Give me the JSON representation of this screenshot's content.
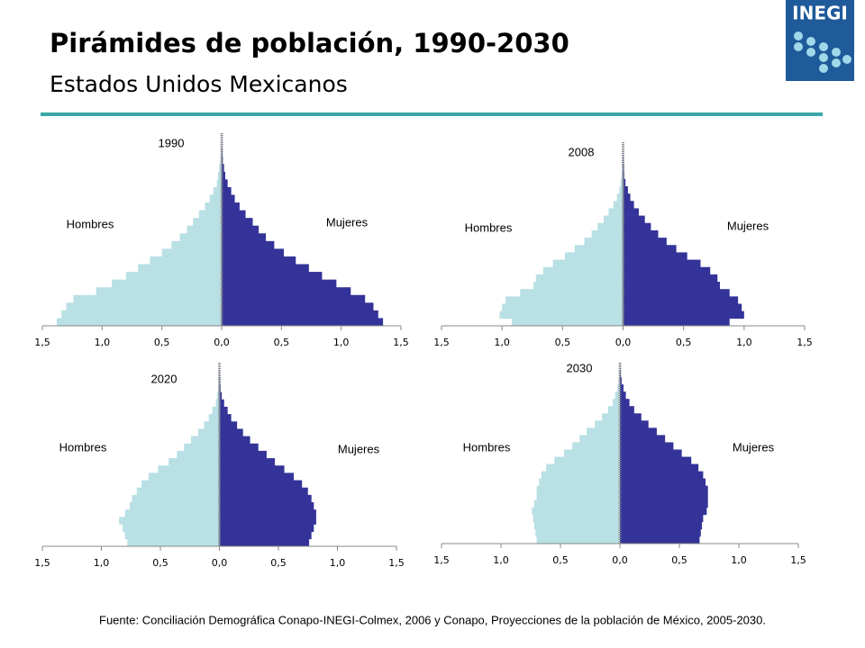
{
  "header": {
    "title": "Pirámides de población, 1990-2030",
    "subtitle": "Estados Unidos Mexicanos",
    "logo": "INEGI"
  },
  "footer": {
    "source": "Fuente: Conciliación Demográfica Conapo-INEGI-Colmex, 2006 y Conapo, Proyecciones de la población de México, 2005-2030."
  },
  "chart_data": [
    {
      "type": "pyramid",
      "title": "1990",
      "categories": [
        null,
        null,
        null,
        null,
        null,
        null,
        null,
        null,
        null,
        null,
        null,
        null,
        null,
        null,
        null,
        null,
        null,
        null,
        null,
        null,
        null,
        null,
        null,
        null,
        null
      ],
      "series": [
        {
          "name": "Hombres",
          "color": "#b9e0e4",
          "values": [
            1.38,
            1.34,
            1.3,
            1.24,
            1.05,
            0.92,
            0.8,
            0.7,
            0.6,
            0.5,
            0.42,
            0.35,
            0.29,
            0.24,
            0.19,
            0.14,
            0.1,
            0.07,
            0.04,
            0.03,
            0.02,
            0.01,
            0.005,
            0.003,
            0.002
          ]
        },
        {
          "name": "Mujeres",
          "color": "#333399",
          "values": [
            1.35,
            1.31,
            1.27,
            1.2,
            1.08,
            0.96,
            0.84,
            0.73,
            0.62,
            0.52,
            0.44,
            0.37,
            0.31,
            0.26,
            0.2,
            0.15,
            0.11,
            0.08,
            0.05,
            0.03,
            0.02,
            0.01,
            0.006,
            0.003,
            0.002
          ]
        }
      ],
      "xlim": [
        -1.5,
        1.5
      ],
      "xticks": [
        {
          "value": -1.5,
          "label": "1,5"
        },
        {
          "value": -1.0,
          "label": "1,0"
        },
        {
          "value": -0.5,
          "label": "0,5"
        },
        {
          "value": 0,
          "label": "0,0"
        },
        {
          "value": 0.5,
          "label": "0,5"
        },
        {
          "value": 1.0,
          "label": "1,0"
        },
        {
          "value": 1.5,
          "label": "1,5"
        }
      ]
    },
    {
      "type": "pyramid",
      "title": "2008",
      "categories": [
        null,
        null,
        null,
        null,
        null,
        null,
        null,
        null,
        null,
        null,
        null,
        null,
        null,
        null,
        null,
        null,
        null,
        null,
        null,
        null,
        null,
        null,
        null,
        null,
        null
      ],
      "series": [
        {
          "name": "Hombres",
          "color": "#b9e0e4",
          "values": [
            0.92,
            1.02,
            1.0,
            0.97,
            0.85,
            0.74,
            0.72,
            0.66,
            0.58,
            0.48,
            0.4,
            0.32,
            0.26,
            0.21,
            0.16,
            0.12,
            0.08,
            0.05,
            0.03,
            0.02,
            0.01,
            0.006,
            0.003,
            0.002,
            0.001
          ]
        },
        {
          "name": "Mujeres",
          "color": "#333399",
          "values": [
            0.88,
            1.0,
            0.98,
            0.95,
            0.88,
            0.8,
            0.78,
            0.72,
            0.64,
            0.53,
            0.44,
            0.36,
            0.29,
            0.23,
            0.18,
            0.13,
            0.09,
            0.06,
            0.04,
            0.02,
            0.01,
            0.007,
            0.004,
            0.002,
            0.001
          ]
        }
      ],
      "xlim": [
        -1.5,
        1.5
      ],
      "xticks": [
        {
          "value": -1.5,
          "label": "1,5"
        },
        {
          "value": -1.0,
          "label": "1,0"
        },
        {
          "value": -0.5,
          "label": "0,5"
        },
        {
          "value": 0,
          "label": "0,0"
        },
        {
          "value": 0.5,
          "label": "0,5"
        },
        {
          "value": 1.0,
          "label": "1,0"
        },
        {
          "value": 1.5,
          "label": "1,5"
        }
      ]
    },
    {
      "type": "pyramid",
      "title": "2020",
      "categories": [
        null,
        null,
        null,
        null,
        null,
        null,
        null,
        null,
        null,
        null,
        null,
        null,
        null,
        null,
        null,
        null,
        null,
        null,
        null,
        null,
        null,
        null,
        null,
        null,
        null
      ],
      "series": [
        {
          "name": "Hombres",
          "color": "#b9e0e4",
          "values": [
            0.78,
            0.8,
            0.82,
            0.85,
            0.8,
            0.76,
            0.74,
            0.7,
            0.66,
            0.6,
            0.52,
            0.43,
            0.36,
            0.3,
            0.24,
            0.18,
            0.13,
            0.09,
            0.06,
            0.03,
            0.02,
            0.01,
            0.005,
            0.003,
            0.001
          ]
        },
        {
          "name": "Mujeres",
          "color": "#333399",
          "values": [
            0.76,
            0.78,
            0.8,
            0.82,
            0.82,
            0.8,
            0.78,
            0.75,
            0.7,
            0.63,
            0.55,
            0.47,
            0.4,
            0.33,
            0.26,
            0.2,
            0.15,
            0.1,
            0.07,
            0.04,
            0.02,
            0.01,
            0.006,
            0.003,
            0.001
          ]
        }
      ],
      "xlim": [
        -1.5,
        1.5
      ],
      "xticks": [
        {
          "value": -1.5,
          "label": "1,5"
        },
        {
          "value": -1.0,
          "label": "1,0"
        },
        {
          "value": -0.5,
          "label": "0,5"
        },
        {
          "value": 0,
          "label": "0,0"
        },
        {
          "value": 0.5,
          "label": "0,5"
        },
        {
          "value": 1.0,
          "label": "1,0"
        },
        {
          "value": 1.5,
          "label": "1,5"
        }
      ]
    },
    {
      "type": "pyramid",
      "title": "2030",
      "categories": [
        null,
        null,
        null,
        null,
        null,
        null,
        null,
        null,
        null,
        null,
        null,
        null,
        null,
        null,
        null,
        null,
        null,
        null,
        null,
        null,
        null,
        null,
        null,
        null,
        null
      ],
      "series": [
        {
          "name": "Hombres",
          "color": "#b9e0e4",
          "values": [
            0.7,
            0.71,
            0.72,
            0.73,
            0.74,
            0.72,
            0.7,
            0.7,
            0.68,
            0.66,
            0.62,
            0.55,
            0.47,
            0.4,
            0.34,
            0.28,
            0.21,
            0.15,
            0.1,
            0.06,
            0.04,
            0.02,
            0.01,
            0.005,
            0.002
          ]
        },
        {
          "name": "Mujeres",
          "color": "#333399",
          "values": [
            0.67,
            0.68,
            0.69,
            0.7,
            0.73,
            0.74,
            0.74,
            0.74,
            0.72,
            0.7,
            0.66,
            0.6,
            0.52,
            0.45,
            0.38,
            0.31,
            0.24,
            0.18,
            0.12,
            0.08,
            0.05,
            0.03,
            0.015,
            0.007,
            0.003
          ]
        }
      ],
      "xlim": [
        -1.5,
        1.5
      ],
      "xticks": [
        {
          "value": -1.5,
          "label": "1,5"
        },
        {
          "value": -1.0,
          "label": "1,0"
        },
        {
          "value": -0.5,
          "label": "0,5"
        },
        {
          "value": 0,
          "label": "0,0"
        },
        {
          "value": 0.5,
          "label": "0,5"
        },
        {
          "value": 1.0,
          "label": "1,0"
        },
        {
          "value": 1.5,
          "label": "1,5"
        }
      ]
    }
  ]
}
